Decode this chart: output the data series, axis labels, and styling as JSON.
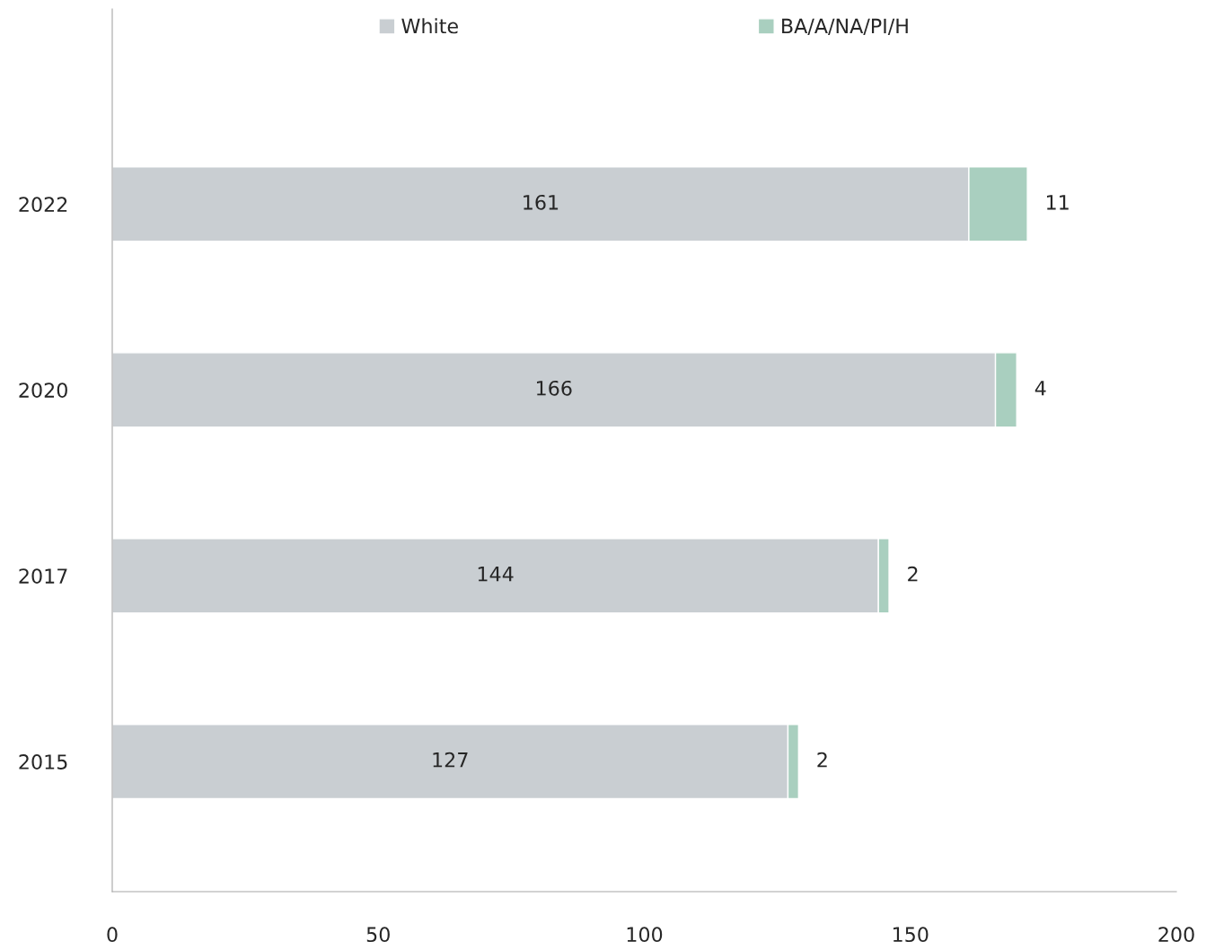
{
  "chart_data": {
    "type": "bar",
    "orientation": "horizontal",
    "stacked": true,
    "categories": [
      "2022",
      "2020",
      "2017",
      "2015"
    ],
    "series": [
      {
        "name": "White",
        "color": "#c9ced2",
        "values": [
          161,
          166,
          144,
          127
        ]
      },
      {
        "name": "BA/A/NA/PI/H",
        "color": "#a9cfbf",
        "values": [
          11,
          4,
          2,
          2
        ]
      }
    ],
    "xlim": [
      0,
      200
    ],
    "xticks": [
      0,
      50,
      100,
      150,
      200
    ],
    "data_labels": true,
    "legend": "top",
    "grid": false
  }
}
